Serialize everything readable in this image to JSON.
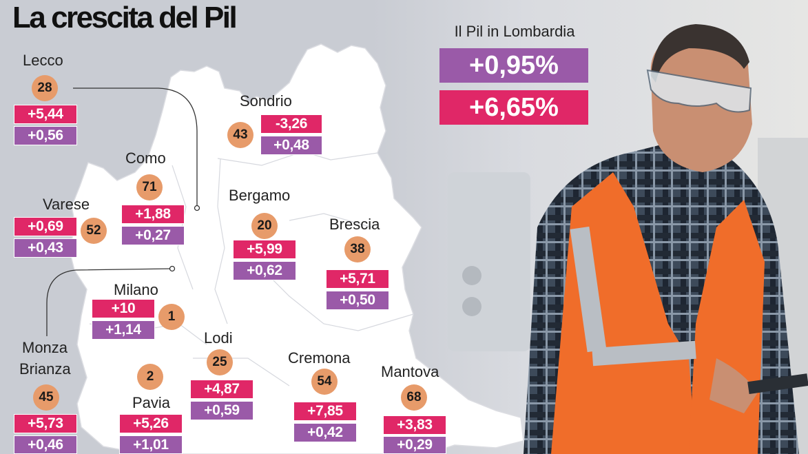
{
  "title": "La crescita del Pil",
  "lombardia": {
    "label": "Il Pil in Lombardia",
    "value_top": "+0,95%",
    "value_bottom": "+6,65%"
  },
  "colors": {
    "pink": "#e02767",
    "purple": "#9a5aa8",
    "rank_circle": "#e79b6a",
    "map_fill": "#ffffff"
  },
  "provinces": [
    {
      "name": "Lecco",
      "rank": "28",
      "pink": "+5,44",
      "purple": "+0,56"
    },
    {
      "name": "Sondrio",
      "rank": "43",
      "pink": "-3,26",
      "purple": "+0,48"
    },
    {
      "name": "Como",
      "rank": "71",
      "pink": "+1,88",
      "purple": "+0,27"
    },
    {
      "name": "Varese",
      "rank": "52",
      "pink": "+0,69",
      "purple": "+0,43"
    },
    {
      "name": "Bergamo",
      "rank": "20",
      "pink": "+5,99",
      "purple": "+0,62"
    },
    {
      "name": "Brescia",
      "rank": "38",
      "pink": "+5,71",
      "purple": "+0,50"
    },
    {
      "name": "Milano",
      "rank": "1",
      "pink": "+10",
      "purple": "+1,14"
    },
    {
      "name": "Lodi",
      "rank": "25",
      "pink": "+4,87",
      "purple": "+0,59"
    },
    {
      "name": "Cremona",
      "rank": "54",
      "pink": "+7,85",
      "purple": "+0,42"
    },
    {
      "name": "Mantova",
      "rank": "68",
      "pink": "+3,83",
      "purple": "+0,29"
    },
    {
      "name": "Monza Brianza",
      "name_line1": "Monza",
      "name_line2": "Brianza",
      "rank": "45",
      "pink": "+5,73",
      "purple": "+0,46"
    },
    {
      "name": "Pavia",
      "rank": "2",
      "pink": "+5,26",
      "purple": "+1,01"
    }
  ]
}
